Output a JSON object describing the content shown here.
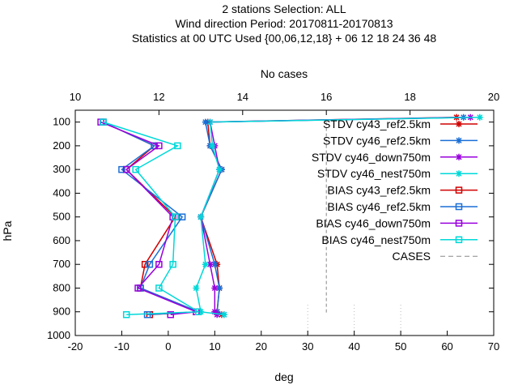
{
  "chart_data": {
    "type": "line",
    "title_lines": [
      "2 stations Selection: ALL",
      "Wind direction  Period: 20170811-20170813",
      "Statistics at 00 UTC  Used {00,06,12,18} + 06 12 18 24 36 48"
    ],
    "xlabel": "deg",
    "x2label": "No cases",
    "ylabel": "hPa",
    "xlim": [
      -20,
      70
    ],
    "x2lim": [
      10,
      20
    ],
    "ylim": [
      1000,
      50
    ],
    "y_reversed": true,
    "xticks": [
      -20,
      -10,
      0,
      10,
      20,
      30,
      40,
      50,
      60,
      70
    ],
    "x2ticks": [
      10,
      12,
      14,
      16,
      18,
      20
    ],
    "yticks": [
      100,
      200,
      300,
      400,
      500,
      600,
      700,
      800,
      900,
      1000
    ],
    "legend_position": "top-right",
    "series": [
      {
        "name": "STDV cy43_ref2.5km",
        "color": "#d00000",
        "marker": "star",
        "points": [
          [
            8.5,
            100
          ],
          [
            9,
            200
          ],
          [
            11.5,
            300
          ],
          [
            7,
            500
          ],
          [
            10.5,
            700
          ],
          [
            11,
            800
          ],
          [
            10.5,
            900
          ],
          [
            11.5,
            912
          ]
        ]
      },
      {
        "name": "STDV cy46_ref2.5km",
        "color": "#1a6fd6",
        "marker": "star",
        "points": [
          [
            8,
            100
          ],
          [
            9,
            200
          ],
          [
            11.5,
            300
          ],
          [
            7,
            500
          ],
          [
            10,
            700
          ],
          [
            11,
            800
          ],
          [
            10.5,
            900
          ],
          [
            12,
            912
          ]
        ]
      },
      {
        "name": "STDV cy46_down750m",
        "color": "#9900dd",
        "marker": "star",
        "points": [
          [
            9,
            100
          ],
          [
            10,
            200
          ],
          [
            11,
            300
          ],
          [
            7,
            500
          ],
          [
            9,
            700
          ],
          [
            10,
            800
          ],
          [
            10,
            900
          ],
          [
            10.5,
            912
          ]
        ]
      },
      {
        "name": "STDV cy46_nest750m",
        "color": "#00d8d8",
        "marker": "star",
        "points": [
          [
            9,
            100
          ],
          [
            9.5,
            200
          ],
          [
            11,
            300
          ],
          [
            7,
            500
          ],
          [
            8,
            700
          ],
          [
            6,
            800
          ],
          [
            7,
            900
          ],
          [
            12,
            912
          ]
        ]
      },
      {
        "name": "BIAS cy43_ref2.5km",
        "color": "#d00000",
        "marker": "square",
        "points": [
          [
            -14,
            100
          ],
          [
            -3,
            200
          ],
          [
            -9,
            300
          ],
          [
            1.5,
            500
          ],
          [
            -5,
            700
          ],
          [
            -6,
            800
          ],
          [
            6.5,
            900
          ],
          [
            -4,
            912
          ]
        ]
      },
      {
        "name": "BIAS cy46_ref2.5km",
        "color": "#1a6fd6",
        "marker": "square",
        "points": [
          [
            -14,
            100
          ],
          [
            -3,
            200
          ],
          [
            -10,
            300
          ],
          [
            3,
            500
          ],
          [
            -4,
            700
          ],
          [
            -6,
            800
          ],
          [
            6.5,
            900
          ],
          [
            -4.5,
            912
          ]
        ]
      },
      {
        "name": "BIAS cy46_down750m",
        "color": "#9900dd",
        "marker": "square",
        "points": [
          [
            -14.5,
            100
          ],
          [
            -2,
            200
          ],
          [
            -9,
            300
          ],
          [
            1,
            500
          ],
          [
            -2,
            700
          ],
          [
            -6.5,
            800
          ],
          [
            6,
            900
          ],
          [
            0.5,
            912
          ]
        ]
      },
      {
        "name": "BIAS cy46_nest750m",
        "color": "#00d8d8",
        "marker": "square",
        "points": [
          [
            -14,
            100
          ],
          [
            2,
            200
          ],
          [
            -7,
            300
          ],
          [
            1.5,
            500
          ],
          [
            1,
            700
          ],
          [
            -2,
            800
          ],
          [
            6.5,
            900
          ],
          [
            -9,
            912
          ]
        ]
      },
      {
        "name": "CASES",
        "color": "#888888",
        "marker": "none",
        "dashed": true,
        "points": [
          [
            34,
            100
          ],
          [
            34,
            200
          ],
          [
            34,
            300
          ],
          [
            34,
            500
          ],
          [
            34,
            700
          ],
          [
            34,
            800
          ],
          [
            34,
            900
          ],
          [
            34,
            912
          ]
        ]
      }
    ],
    "top_axis_spikes": {
      "note": "lines reach top-right No cases axis region",
      "x": [
        62,
        63.5,
        65,
        67
      ]
    }
  }
}
